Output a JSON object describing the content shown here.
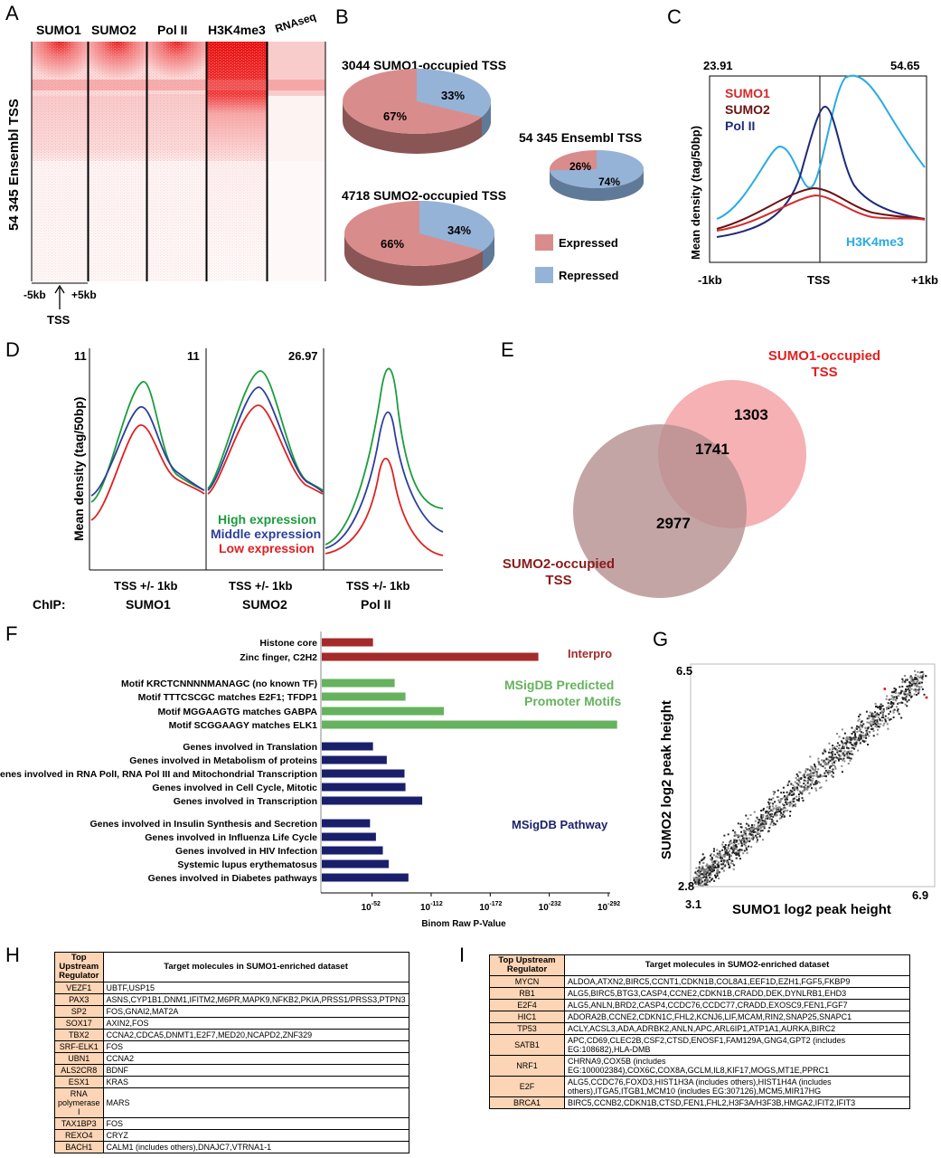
{
  "panels": {
    "A": "A",
    "B": "B",
    "C": "C",
    "D": "D",
    "E": "E",
    "F": "F",
    "G": "G",
    "H": "H",
    "I": "I"
  },
  "panelA": {
    "columns": [
      "SUMO1",
      "SUMO2",
      "Pol II",
      "H3K4me3",
      "RNAseq"
    ],
    "ylabel": "54 345 Ensembl TSS",
    "xleft": "-5kb",
    "xright": "+5kb",
    "tss": "TSS"
  },
  "panelB": {
    "colors": {
      "expressed": "#d98c8c",
      "repressed": "#95b3d7"
    },
    "pies": [
      {
        "title": "3044 SUMO1-occupied  TSS",
        "expressed": "67%",
        "repressed": "33%",
        "expressed_frac": 0.67
      },
      {
        "title": "4718 SUMO2-occupied  TSS",
        "expressed": "66%",
        "repressed": "34%",
        "expressed_frac": 0.66
      },
      {
        "title": "54 345 Ensembl  TSS",
        "expressed": "26%",
        "repressed": "74%",
        "expressed_frac": 0.26
      }
    ],
    "legend": {
      "expressed": "Expressed",
      "repressed": "Repressed"
    }
  },
  "panelC": {
    "left_max": "23.91",
    "right_max": "54.65",
    "ylabel": "Mean density (tag/50bp)",
    "xticks": [
      "-1kb",
      "TSS",
      "+1kb"
    ],
    "series": [
      {
        "name": "SUMO1",
        "color": "#d42a2a"
      },
      {
        "name": "SUMO2",
        "color": "#6b1212"
      },
      {
        "name": "Pol II",
        "color": "#1e2a7a"
      },
      {
        "name": "H3K4me3",
        "color": "#29abe2"
      }
    ]
  },
  "panelD": {
    "ylabel": "Mean density (tag/50bp)",
    "maxes": [
      "11",
      "11",
      "26.97"
    ],
    "xlabel": "TSS +/- 1kb",
    "chip_label": "ChIP:",
    "chips": [
      "SUMO1",
      "SUMO2",
      "Pol II"
    ],
    "legend": [
      {
        "name": "High expression",
        "color": "#1c9c3c"
      },
      {
        "name": "Middle expression",
        "color": "#2c3e9c"
      },
      {
        "name": "Low expression",
        "color": "#e02020"
      }
    ]
  },
  "panelE": {
    "sumo1_only": "1303",
    "overlap": "1741",
    "sumo2_only": "2977",
    "sumo1_label": [
      "SUMO1-occupied",
      "TSS"
    ],
    "sumo2_label": [
      "SUMO2-occupied",
      "TSS"
    ]
  },
  "panelF": {
    "groups": [
      {
        "name": "Interpro",
        "color": "#a52a2a",
        "items": [
          {
            "label": "Histone core",
            "value": 52
          },
          {
            "label": "Zinc finger, C2H2",
            "value": 220
          }
        ]
      },
      {
        "name": "MSigDB Predicted Promoter Motifs",
        "name_lines": [
          "MSigDB Predicted",
          "Promoter Motifs"
        ],
        "color": "#66b25e",
        "items": [
          {
            "label": "Motif KRCTCNNNNMANAGC (no known TF)",
            "value": 74
          },
          {
            "label": "Motif TTTCSCGC matches E2F1; TFDP1",
            "value": 85
          },
          {
            "label": "Motif MGGAAGTG matches GABPA",
            "value": 124
          },
          {
            "label": "Motif SCGGAAGY matches ELK1",
            "value": 300
          }
        ]
      },
      {
        "name": "MSigDB Pathway",
        "color": "#1a1f6b",
        "items": [
          {
            "label": "Genes involved in Translation",
            "value": 52
          },
          {
            "label": "Genes involved in Metabolism of proteins",
            "value": 66
          },
          {
            "label": "Genes involved in RNA PolI, RNA Pol III and Mitochondrial Transcription",
            "value": 84
          },
          {
            "label": "Genes involved in Cell Cycle, Mitotic",
            "value": 85
          },
          {
            "label": "Genes involved in Transcription",
            "value": 102
          },
          {
            "label": "Genes involved in Insulin Synthesis and Secretion",
            "value": 49
          },
          {
            "label": "Genes involved in Influenza Life Cycle",
            "value": 55
          },
          {
            "label": "Genes involved in HIV Infection",
            "value": 62
          },
          {
            "label": "Systemic lupus erythematosus",
            "value": 68
          },
          {
            "label": "Genes involved in Diabetes pathways",
            "value": 88
          }
        ]
      }
    ],
    "xticks": [
      {
        "base": "10",
        "exp": "-52",
        "value": 52
      },
      {
        "base": "10",
        "exp": "-112",
        "value": 112
      },
      {
        "base": "10",
        "exp": "-172",
        "value": 172
      },
      {
        "base": "10",
        "exp": "-232",
        "value": 232
      },
      {
        "base": "10",
        "exp": "-292",
        "value": 292
      }
    ],
    "xlabel": "Binom Raw P-Value"
  },
  "panelG": {
    "xlabel": "SUMO1 log2 peak height",
    "ylabel": "SUMO2 log2 peak height",
    "xmin": "3.1",
    "xmax": "6.9",
    "ymin": "2.8",
    "ymax": "6.5"
  },
  "tableH": {
    "headers": [
      "Top Upstream Regulator",
      "Target molecules in SUMO1-enriched dataset"
    ],
    "rows": [
      [
        "VEZF1",
        "UBTF,USP15"
      ],
      [
        "PAX3",
        "ASNS,CYP1B1,DNM1,IFITM2,M6PR,MAPK9,NFKB2,PKIA,PRSS1/PRSS3,PTPN3"
      ],
      [
        "SP2",
        "FOS,GNAI2,MAT2A"
      ],
      [
        "SOX17",
        "AXIN2,FOS"
      ],
      [
        "TBX2",
        "CCNA2,CDCA5,DNMT1,E2F7,MED20,NCAPD2,ZNF329"
      ],
      [
        "SRF-ELK1",
        "FOS"
      ],
      [
        "UBN1",
        "CCNA2"
      ],
      [
        "ALS2CR8",
        "BDNF"
      ],
      [
        "ESX1",
        "KRAS"
      ],
      [
        "RNA polymerase I",
        "MARS"
      ],
      [
        "TAX1BP3",
        "FOS"
      ],
      [
        "REXO4",
        "CRYZ"
      ],
      [
        "BACH1",
        "CALM1 (includes others),DNAJC7,VTRNA1-1"
      ]
    ]
  },
  "tableI": {
    "headers": [
      "Top Upstream Regulator",
      "Target molecules in SUMO2-enriched dataset"
    ],
    "rows": [
      [
        "MYCN",
        "ALDOA,ATXN2,BIRC5,CCNT1,CDKN1B,COL8A1,EEF1D,EZH1,FGF5,FKBP9"
      ],
      [
        "RB1",
        "ALG5,BIRC5,BTG3,CASP4,CCNE2,CDKN1B,CRADD,DEK,DYNLRB1,EHD3"
      ],
      [
        "E2F4",
        "ALG5,ANLN,BRD2,CASP4,CCDC76,CCDC77,CRADD,EXOSC9,FEN1,FGF7"
      ],
      [
        "HIC1",
        "ADORA2B,CCNE2,CDKN1C,FHL2,KCNJ6,LIF,MCAM,RIN2,SNAP25,SNAPC1"
      ],
      [
        "TP53",
        "ACLY,ACSL3,ADA,ADRBK2,ANLN,APC,ARL6IP1,ATP1A1,AURKA,BIRC2"
      ],
      [
        "SATB1",
        "APC,CD69,CLEC2B,CSF2,CTSD,ENOSF1,FAM129A,GNG4,GPT2 (includes EG:108682),HLA-DMB"
      ],
      [
        "NRF1",
        "CHRNA9,COX5B (includes EG:100002384),COX6C,COX8A,GCLM,IL8,KIF17,MOGS,MT1E,PPRC1"
      ],
      [
        "E2F",
        "ALG5,CCDC76,FOXD3,HIST1H3A (includes others),HIST1H4A (includes others),ITGA5,ITGB1,MCM10 (includes EG:307126),MCM5,MIR17HG"
      ],
      [
        "BRCA1",
        "BIRC5,CCNB2,CDKN1B,CTSD,FEN1,FHL2,H3F3A/H3F3B,HMGA2,IFIT2,IFIT3"
      ]
    ]
  }
}
